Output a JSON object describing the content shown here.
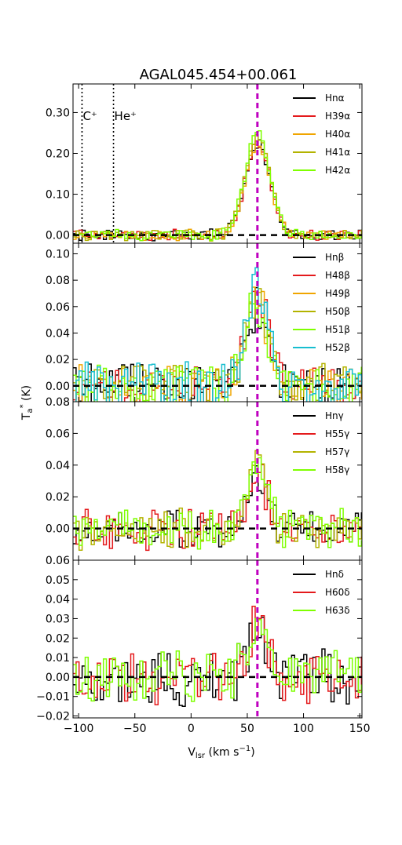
{
  "chart_data": {
    "type": "line",
    "title": "AGAL045.454+00.061",
    "xlabel": "V_lsr (km s^-1)",
    "ylabel": "T_a* (K)",
    "xlim": [
      -105,
      152
    ],
    "xticks": [
      "−100",
      "−50",
      "0",
      "50",
      "100",
      "150"
    ],
    "xtick_values": [
      -100,
      -50,
      0,
      50,
      100,
      150
    ],
    "reference_velocity": 59,
    "reference_color": "#bf00bf",
    "annotations": [
      {
        "text": "C⁺",
        "x": -97
      },
      {
        "text": "He⁺",
        "x": -69
      }
    ],
    "panels": [
      {
        "ylim": [
          -0.02,
          0.37
        ],
        "yticks": [
          "0.00",
          "0.10",
          "0.20",
          "0.30"
        ],
        "ytick_values": [
          0.0,
          0.1,
          0.2,
          0.3
        ],
        "show_species_lines": true,
        "line": {
          "amp": 0.225,
          "center": 58,
          "sigma": 11
        },
        "noise": 0.012,
        "series": [
          {
            "name": "Hnα",
            "color": "#000000",
            "scale": 1.0,
            "seed": 1
          },
          {
            "name": "H39α",
            "color": "#e41a1c",
            "scale": 1.0,
            "seed": 2
          },
          {
            "name": "H40α",
            "color": "#f0a500",
            "scale": 1.0,
            "seed": 3
          },
          {
            "name": "H41α",
            "color": "#b3b300",
            "scale": 1.05,
            "seed": 4
          },
          {
            "name": "H42α",
            "color": "#7fff00",
            "scale": 1.1,
            "seed": 5
          }
        ]
      },
      {
        "ylim": [
          -0.012,
          0.108
        ],
        "yticks": [
          "0.00",
          "0.02",
          "0.04",
          "0.06",
          "0.08",
          "0.10"
        ],
        "ytick_values": [
          0.0,
          0.02,
          0.04,
          0.06,
          0.08,
          0.1
        ],
        "show_species_lines": false,
        "line": {
          "amp": 0.065,
          "center": 57,
          "sigma": 10
        },
        "noise": 0.015,
        "series": [
          {
            "name": "Hnβ",
            "color": "#000000",
            "scale": 0.9,
            "seed": 11
          },
          {
            "name": "H48β",
            "color": "#e41a1c",
            "scale": 1.1,
            "seed": 12
          },
          {
            "name": "H49β",
            "color": "#f0a500",
            "scale": 1.05,
            "seed": 13
          },
          {
            "name": "H50β",
            "color": "#b3b300",
            "scale": 1.0,
            "seed": 14
          },
          {
            "name": "H51β",
            "color": "#7fff00",
            "scale": 0.95,
            "seed": 15
          },
          {
            "name": "H52β",
            "color": "#17becf",
            "scale": 1.15,
            "seed": 16
          }
        ]
      },
      {
        "ylim": [
          -0.02,
          0.08
        ],
        "yticks": [
          "0.00",
          "0.02",
          "0.04",
          "0.06",
          "0.08"
        ],
        "ytick_values": [
          0.0,
          0.02,
          0.04,
          0.06,
          0.08
        ],
        "show_species_lines": false,
        "line": {
          "amp": 0.035,
          "center": 57,
          "sigma": 9
        },
        "noise": 0.011,
        "series": [
          {
            "name": "Hnγ",
            "color": "#000000",
            "scale": 0.95,
            "seed": 21
          },
          {
            "name": "H55γ",
            "color": "#e41a1c",
            "scale": 1.0,
            "seed": 22
          },
          {
            "name": "H57γ",
            "color": "#b3b300",
            "scale": 1.2,
            "seed": 23
          },
          {
            "name": "H58γ",
            "color": "#7fff00",
            "scale": 1.05,
            "seed": 24
          }
        ]
      },
      {
        "ylim": [
          -0.021,
          0.06
        ],
        "yticks": [
          "−0.02",
          "−0.01",
          "0.00",
          "0.01",
          "0.02",
          "0.03",
          "0.04",
          "0.05",
          "0.06"
        ],
        "ytick_values": [
          -0.02,
          -0.01,
          0.0,
          0.01,
          0.02,
          0.03,
          0.04,
          0.05,
          0.06
        ],
        "show_species_lines": false,
        "line": {
          "amp": 0.022,
          "center": 57,
          "sigma": 9
        },
        "noise": 0.012,
        "series": [
          {
            "name": "Hnδ",
            "color": "#000000",
            "scale": 0.9,
            "seed": 31
          },
          {
            "name": "H60δ",
            "color": "#e41a1c",
            "scale": 1.2,
            "seed": 32
          },
          {
            "name": "H63δ",
            "color": "#7fff00",
            "scale": 1.0,
            "seed": 33
          }
        ]
      }
    ]
  }
}
